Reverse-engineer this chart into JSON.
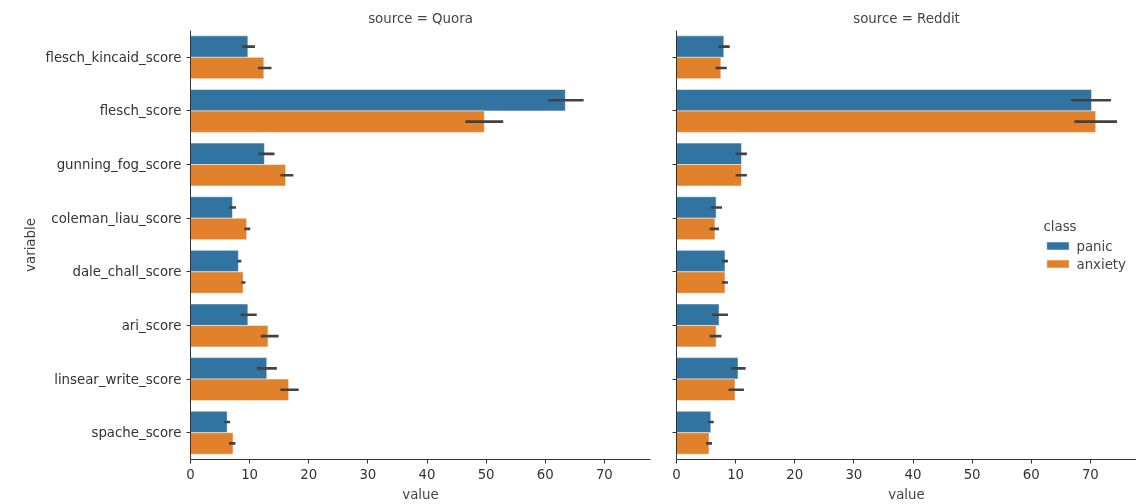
{
  "chart_data": [
    {
      "type": "bar",
      "orientation": "horizontal",
      "title": "source = Quora",
      "xlabel": "value",
      "ylabel": "variable",
      "categories": [
        "flesch_kincaid_score",
        "flesch_score",
        "gunning_fog_score",
        "coleman_liau_score",
        "dale_chall_score",
        "ari_score",
        "linsear_write_score",
        "spache_score"
      ],
      "xlim": [
        0,
        77.8
      ],
      "xticks": [
        0,
        10,
        20,
        30,
        40,
        50,
        60,
        70
      ],
      "grid": false,
      "series": [
        {
          "color": "#3274a1",
          "values": [
            9.7,
            63.4,
            12.5,
            7.1,
            8.1,
            9.7,
            12.9,
            6.2
          ],
          "errors": [
            [
              8.7,
              10.9
            ],
            [
              60.5,
              66.5
            ],
            [
              11.5,
              14.2
            ],
            [
              6.5,
              7.7
            ],
            [
              7.9,
              8.6
            ],
            [
              8.5,
              11.2
            ],
            [
              11.2,
              14.6
            ],
            [
              5.7,
              6.7
            ]
          ]
        },
        {
          "color": "#e1812c",
          "values": [
            12.4,
            49.7,
            16.1,
            9.5,
            8.9,
            13.1,
            16.6,
            7.2
          ],
          "errors": [
            [
              11.4,
              13.7
            ],
            [
              46.5,
              52.9
            ],
            [
              15.2,
              17.4
            ],
            [
              9.1,
              10.1
            ],
            [
              8.6,
              9.3
            ],
            [
              11.9,
              14.9
            ],
            [
              15.2,
              18.3
            ],
            [
              6.5,
              7.6
            ]
          ]
        }
      ]
    },
    {
      "type": "bar",
      "orientation": "horizontal",
      "title": "source = Reddit",
      "xlabel": "value",
      "legend_title": "class",
      "legend": "right",
      "tick_labels": "x",
      "categories": [
        null,
        null,
        null,
        null,
        null,
        null,
        null,
        null
      ],
      "xlim": [
        0,
        77.8
      ],
      "xticks": [
        0,
        10,
        20,
        30,
        40,
        50,
        60,
        70
      ],
      "grid": false,
      "series": [
        {
          "name": "panic",
          "color": "#3274a1",
          "values": [
            8.0,
            70.2,
            11.0,
            6.7,
            8.2,
            7.2,
            10.4,
            5.8
          ],
          "errors": [
            [
              7.1,
              9.0
            ],
            [
              66.8,
              73.5
            ],
            [
              10.0,
              11.9
            ],
            [
              5.8,
              7.7
            ],
            [
              7.7,
              8.7
            ],
            [
              6.0,
              8.7
            ],
            [
              9.2,
              11.7
            ],
            [
              5.3,
              6.3
            ]
          ]
        },
        {
          "name": "anxiety",
          "color": "#e1812c",
          "values": [
            7.5,
            70.9,
            11.0,
            6.5,
            8.2,
            6.7,
            9.9,
            5.5
          ],
          "errors": [
            [
              6.6,
              8.5
            ],
            [
              67.3,
              74.5
            ],
            [
              10.0,
              11.9
            ],
            [
              5.6,
              7.2
            ],
            [
              7.7,
              8.7
            ],
            [
              5.6,
              7.6
            ],
            [
              8.8,
              11.4
            ],
            [
              5.0,
              6.0
            ]
          ]
        }
      ]
    }
  ]
}
